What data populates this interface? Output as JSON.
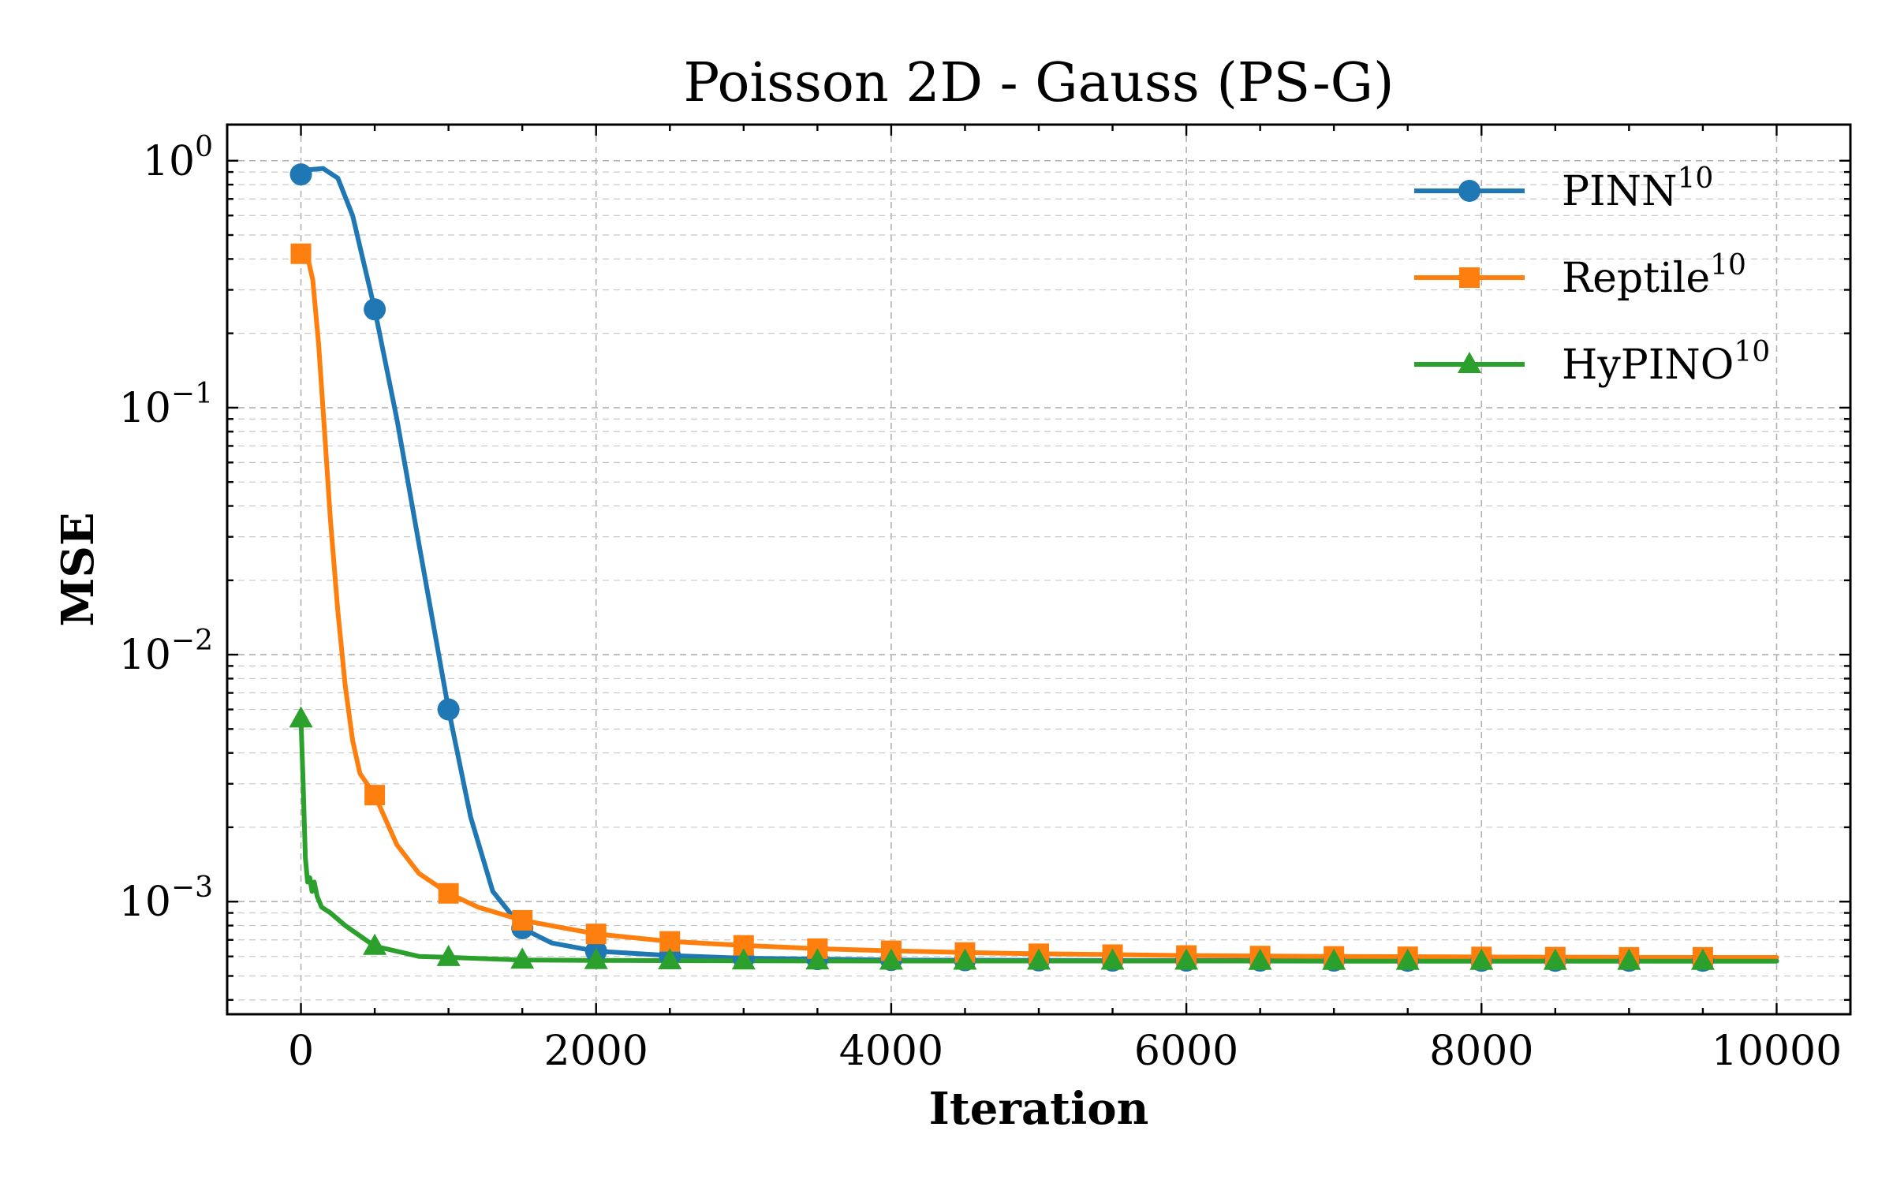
{
  "chart_data": {
    "type": "line",
    "title": "Poisson 2D - Gauss (PS-G)",
    "xlabel": "Iteration",
    "ylabel": "MSE",
    "xlim": [
      -500,
      10500
    ],
    "ylim": [
      0.00035,
      1.4
    ],
    "yscale": "log",
    "xticks": [
      0,
      2000,
      4000,
      6000,
      8000,
      10000
    ],
    "yticks": [
      {
        "value": 1,
        "base": "10",
        "exp": "0"
      },
      {
        "value": 0.1,
        "base": "10",
        "exp": "−1"
      },
      {
        "value": 0.01,
        "base": "10",
        "exp": "−2"
      },
      {
        "value": 0.001,
        "base": "10",
        "exp": "−3"
      }
    ],
    "grid": true,
    "legend_position": "top-right",
    "series": [
      {
        "name": "PINN",
        "superscript": "10",
        "color": "#1f77b4",
        "marker": "circle",
        "x": [
          0,
          60,
          150,
          250,
          350,
          500,
          650,
          800,
          1000,
          1150,
          1300,
          1500,
          1700,
          2000,
          2500,
          3000,
          3500,
          4000,
          5000,
          6000,
          7000,
          8000,
          9000,
          10000
        ],
        "y": [
          0.88,
          0.92,
          0.93,
          0.85,
          0.6,
          0.25,
          0.09,
          0.028,
          0.006,
          0.0022,
          0.0011,
          0.00078,
          0.00068,
          0.00063,
          0.000605,
          0.00059,
          0.000585,
          0.00058,
          0.000578,
          0.000577,
          0.000577,
          0.000576,
          0.000576,
          0.000576
        ],
        "marker_x": [
          0,
          500,
          1000,
          1500,
          2000,
          2500,
          3000,
          3500,
          4000,
          4500,
          5000,
          5500,
          6000,
          6500,
          7000,
          7500,
          8000,
          8500,
          9000,
          9500
        ],
        "marker_y": [
          0.88,
          0.25,
          0.006,
          0.00078,
          0.00063,
          0.000605,
          0.00059,
          0.000585,
          0.00058,
          0.000579,
          0.000578,
          0.000577,
          0.000577,
          0.000577,
          0.000577,
          0.000576,
          0.000576,
          0.000576,
          0.000576,
          0.000576
        ]
      },
      {
        "name": "Reptile",
        "superscript": "10",
        "color": "#ff7f0e",
        "marker": "square",
        "x": [
          0,
          40,
          80,
          120,
          160,
          200,
          250,
          300,
          350,
          400,
          500,
          650,
          800,
          1000,
          1200,
          1500,
          2000,
          2500,
          3000,
          3500,
          4000,
          4500,
          5000,
          6000,
          7000,
          8000,
          9000,
          10000
        ],
        "y": [
          0.42,
          0.42,
          0.33,
          0.18,
          0.08,
          0.035,
          0.015,
          0.0075,
          0.0045,
          0.0033,
          0.0027,
          0.0017,
          0.0013,
          0.00108,
          0.00095,
          0.00084,
          0.00074,
          0.00069,
          0.000665,
          0.000645,
          0.000632,
          0.000622,
          0.000615,
          0.000605,
          0.0006,
          0.000597,
          0.000595,
          0.000594
        ],
        "marker_x": [
          0,
          500,
          1000,
          1500,
          2000,
          2500,
          3000,
          3500,
          4000,
          4500,
          5000,
          5500,
          6000,
          6500,
          7000,
          7500,
          8000,
          8500,
          9000,
          9500
        ],
        "marker_y": [
          0.42,
          0.0027,
          0.00108,
          0.00084,
          0.00074,
          0.00069,
          0.000665,
          0.000645,
          0.000632,
          0.000622,
          0.000615,
          0.00061,
          0.000605,
          0.000602,
          0.0006,
          0.000598,
          0.000597,
          0.000596,
          0.000595,
          0.000595
        ]
      },
      {
        "name": "HyPINO",
        "superscript": "10",
        "color": "#2ca02c",
        "marker": "triangle",
        "x": [
          0,
          15,
          30,
          45,
          60,
          75,
          90,
          110,
          140,
          200,
          300,
          500,
          800,
          1000,
          1500,
          2000,
          3000,
          4000,
          5000,
          6000,
          7000,
          8000,
          9000,
          10000
        ],
        "y": [
          0.0055,
          0.003,
          0.0015,
          0.0012,
          0.00125,
          0.0011,
          0.0012,
          0.00105,
          0.00095,
          0.0009,
          0.0008,
          0.00066,
          0.0006,
          0.000595,
          0.00058,
          0.000578,
          0.000576,
          0.000575,
          0.000575,
          0.000575,
          0.000574,
          0.000574,
          0.000574,
          0.000574
        ],
        "marker_x": [
          0,
          500,
          1000,
          1500,
          2000,
          2500,
          3000,
          3500,
          4000,
          4500,
          5000,
          5500,
          6000,
          6500,
          7000,
          7500,
          8000,
          8500,
          9000,
          9500
        ],
        "marker_y": [
          0.0055,
          0.00066,
          0.000595,
          0.00058,
          0.000578,
          0.000577,
          0.000576,
          0.000576,
          0.000575,
          0.000575,
          0.000575,
          0.000575,
          0.000575,
          0.000574,
          0.000574,
          0.000574,
          0.000574,
          0.000574,
          0.000574,
          0.000574
        ]
      }
    ]
  }
}
